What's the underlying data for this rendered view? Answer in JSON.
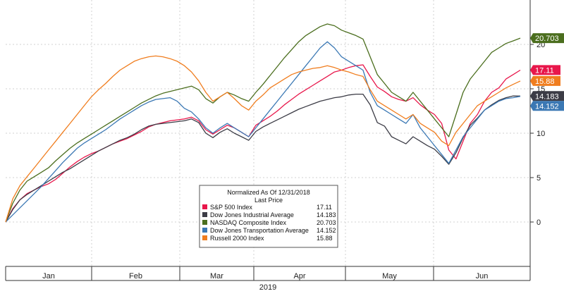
{
  "chart_data": {
    "type": "line",
    "xaxis": {
      "months": [
        "Jan",
        "Feb",
        "Mar",
        "Apr",
        "May",
        "Jun"
      ],
      "year_label": "2019"
    },
    "ylim": [
      -5,
      25
    ],
    "yticks": [
      0,
      5,
      10,
      15,
      20
    ],
    "grid": true,
    "legend": {
      "title": "Normalized As Of 12/31/2018",
      "subtitle": "Last Price",
      "placement": "bottom-center"
    },
    "series": [
      {
        "name": "S&P 500 Index",
        "last": "17.11",
        "color": "#e8174b",
        "values": [
          0,
          1.5,
          2.5,
          3.2,
          3.6,
          4.0,
          4.3,
          4.8,
          5.5,
          6.2,
          6.8,
          7.3,
          7.7,
          8.0,
          8.4,
          8.8,
          9.1,
          9.4,
          9.8,
          10.2,
          10.7,
          11.0,
          11.2,
          11.4,
          11.5,
          11.6,
          11.8,
          11.4,
          10.4,
          9.9,
          10.4,
          10.9,
          10.6,
          10.1,
          9.6,
          10.9,
          11.4,
          11.9,
          12.5,
          13.2,
          13.8,
          14.4,
          14.9,
          15.4,
          15.9,
          16.4,
          16.9,
          17.1,
          17.4,
          17.6,
          17.7,
          16.4,
          15.2,
          14.7,
          14.1,
          13.8,
          13.6,
          14.0,
          13.2,
          12.6,
          12.1,
          11.1,
          8.1,
          7.1,
          9.1,
          11.1,
          12.1,
          13.6,
          14.6,
          15.1,
          16.1,
          16.6,
          17.1
        ]
      },
      {
        "name": "Dow Jones Industrial Average",
        "last": "14.183",
        "color": "#3c3c46",
        "values": [
          0,
          1.4,
          2.5,
          3.1,
          3.6,
          4.1,
          4.6,
          5.1,
          5.6,
          6.0,
          6.5,
          7.0,
          7.5,
          8.0,
          8.4,
          8.8,
          9.2,
          9.5,
          9.9,
          10.4,
          10.8,
          11.0,
          11.1,
          11.2,
          11.3,
          11.4,
          11.6,
          11.2,
          10.0,
          9.5,
          10.1,
          10.5,
          10.0,
          9.6,
          9.2,
          10.2,
          10.7,
          11.1,
          11.5,
          11.9,
          12.3,
          12.7,
          13.0,
          13.3,
          13.6,
          13.8,
          14.0,
          14.1,
          14.3,
          14.4,
          14.4,
          13.2,
          11.2,
          10.8,
          9.6,
          9.2,
          8.8,
          9.6,
          9.1,
          8.6,
          8.2,
          7.4,
          6.5,
          7.8,
          9.5,
          10.9,
          11.7,
          12.6,
          13.2,
          13.7,
          14.0,
          14.2,
          14.18
        ]
      },
      {
        "name": "NASDAQ Composite Index",
        "last": "20.703",
        "color": "#4b6e1e",
        "values": [
          0,
          2.1,
          3.6,
          4.6,
          5.1,
          5.6,
          6.1,
          6.9,
          7.6,
          8.3,
          8.9,
          9.4,
          9.9,
          10.4,
          10.9,
          11.4,
          11.9,
          12.4,
          12.9,
          13.4,
          13.8,
          14.2,
          14.5,
          14.7,
          14.9,
          15.1,
          15.3,
          14.9,
          13.9,
          13.4,
          14.1,
          14.6,
          14.3,
          13.9,
          13.6,
          14.6,
          15.5,
          16.5,
          17.5,
          18.5,
          19.4,
          20.3,
          21.0,
          21.5,
          22.0,
          22.3,
          22.1,
          21.6,
          21.3,
          21.0,
          20.6,
          18.6,
          16.6,
          15.6,
          14.6,
          14.1,
          13.6,
          14.6,
          13.6,
          12.6,
          11.6,
          10.6,
          9.6,
          12.1,
          14.6,
          16.1,
          17.1,
          18.1,
          19.1,
          19.6,
          20.1,
          20.4,
          20.703
        ]
      },
      {
        "name": "Dow Jones Transportation Average",
        "last": "14.152",
        "color": "#3b78b4",
        "values": [
          0,
          0.8,
          1.6,
          2.4,
          3.2,
          4.0,
          4.9,
          5.8,
          6.7,
          7.5,
          8.3,
          8.9,
          9.4,
          9.9,
          10.4,
          11.0,
          11.6,
          12.1,
          12.6,
          13.1,
          13.5,
          13.8,
          13.9,
          14.0,
          13.6,
          12.8,
          12.4,
          11.6,
          10.6,
          10.0,
          10.6,
          11.1,
          10.6,
          10.1,
          9.6,
          10.6,
          11.6,
          12.6,
          13.6,
          14.6,
          15.6,
          16.6,
          17.6,
          18.6,
          19.6,
          20.3,
          19.6,
          18.6,
          18.1,
          17.6,
          17.1,
          14.6,
          13.1,
          12.6,
          12.1,
          11.6,
          11.1,
          12.1,
          10.6,
          9.6,
          8.6,
          7.6,
          6.6,
          8.1,
          9.6,
          10.6,
          11.6,
          12.6,
          13.1,
          13.6,
          13.9,
          14.0,
          14.152
        ]
      },
      {
        "name": "Russell 2000 Index",
        "last": "15.88",
        "color": "#f07d1e",
        "values": [
          0,
          2.6,
          4.1,
          5.1,
          6.1,
          7.1,
          8.1,
          9.1,
          10.1,
          11.1,
          12.1,
          13.1,
          14.1,
          14.9,
          15.6,
          16.4,
          17.1,
          17.6,
          18.1,
          18.4,
          18.6,
          18.7,
          18.6,
          18.4,
          18.1,
          17.6,
          16.9,
          15.9,
          14.6,
          13.6,
          14.1,
          14.6,
          13.9,
          13.1,
          12.6,
          13.6,
          14.3,
          15.1,
          15.6,
          16.1,
          16.6,
          16.9,
          17.1,
          17.3,
          17.4,
          17.6,
          17.4,
          17.1,
          16.9,
          16.6,
          16.4,
          14.9,
          13.6,
          13.1,
          12.6,
          12.1,
          11.6,
          12.1,
          11.1,
          10.6,
          10.1,
          9.1,
          8.6,
          10.1,
          11.1,
          12.1,
          13.1,
          13.6,
          14.1,
          14.6,
          15.1,
          15.5,
          15.88
        ]
      }
    ]
  }
}
